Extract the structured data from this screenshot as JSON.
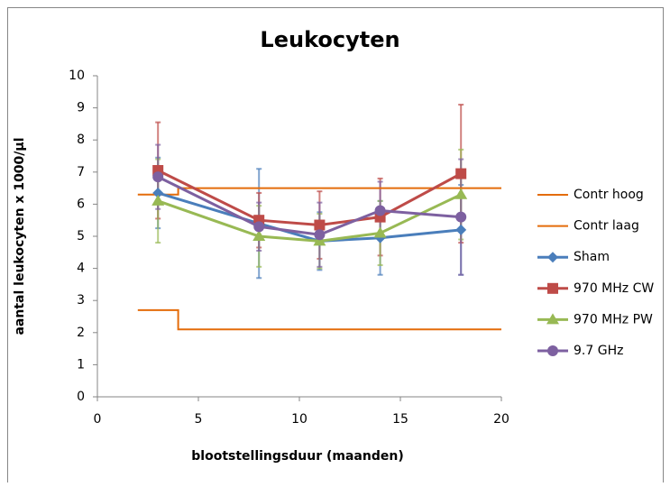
{
  "chart_data": {
    "type": "scatter",
    "title": "Leukocyten",
    "x_label": "blootstellingsduur (maanden)",
    "y_label": "aantal leukocyten x 1000/µl",
    "x": [
      3,
      8,
      11,
      14,
      18
    ],
    "xlim": [
      0,
      20
    ],
    "xticks": [
      0,
      5,
      10,
      15,
      20
    ],
    "ylim": [
      0,
      10
    ],
    "yticks": [
      0,
      1,
      2,
      3,
      4,
      5,
      6,
      7,
      8,
      9,
      10
    ],
    "grid": false,
    "legend": "right",
    "series": [
      {
        "name": "Contr hoog",
        "color": "#e46c0a",
        "x": [
          2,
          4,
          4,
          20
        ],
        "values": [
          6.3,
          6.3,
          6.5,
          6.5
        ],
        "marker": "none"
      },
      {
        "name": "Contr laag",
        "color": "#e46c0a",
        "x": [
          2,
          4,
          4,
          20
        ],
        "values": [
          2.7,
          2.7,
          2.1,
          2.1
        ],
        "marker": "none"
      },
      {
        "name": "Sham",
        "color": "#4a7ebb",
        "values": [
          6.35,
          5.4,
          4.85,
          4.95,
          5.2
        ],
        "errors": [
          1.1,
          1.7,
          0.9,
          1.15,
          1.4
        ],
        "marker": "diamond"
      },
      {
        "name": "970 MHz CW",
        "color": "#be4b48",
        "values": [
          7.05,
          5.5,
          5.35,
          5.6,
          6.95
        ],
        "errors": [
          1.5,
          0.85,
          1.05,
          1.2,
          2.15
        ],
        "marker": "square"
      },
      {
        "name": "970 MHz PW",
        "color": "#98b954",
        "values": [
          6.1,
          5.0,
          4.85,
          5.1,
          6.3
        ],
        "errors": [
          1.3,
          0.95,
          0.85,
          1.0,
          1.4
        ],
        "marker": "triangle"
      },
      {
        "name": "9.7 GHz",
        "color": "#7d60a0",
        "values": [
          6.85,
          5.3,
          5.05,
          5.8,
          5.6
        ],
        "errors": [
          1.0,
          0.75,
          1.0,
          0.9,
          1.8
        ],
        "marker": "circle"
      }
    ]
  }
}
